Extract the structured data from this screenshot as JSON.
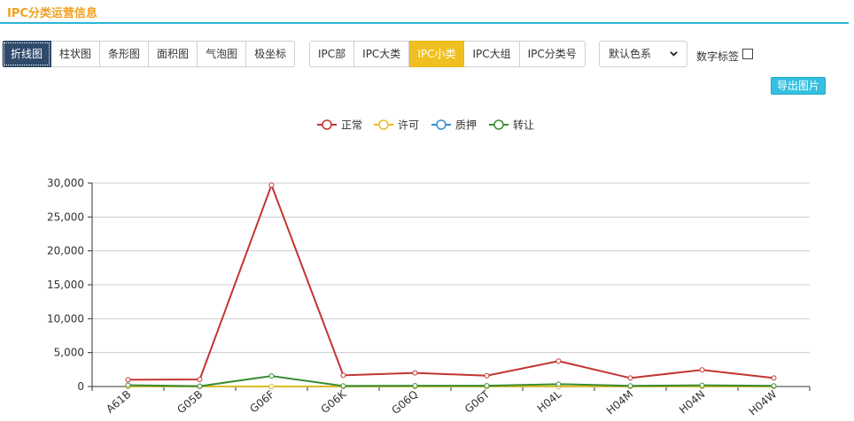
{
  "panel_title": "IPC分类运营信息",
  "chart_types": [
    "折线图",
    "柱状图",
    "条形图",
    "面积图",
    "气泡图",
    "极坐标"
  ],
  "ipc_levels": [
    "IPC部",
    "IPC大类",
    "IPC小类",
    "IPC大组",
    "IPC分类号"
  ],
  "color_scheme": "默认色系",
  "number_label": "数字标签",
  "export_label": "导出图片",
  "chart_data": {
    "type": "line",
    "categories": [
      "A61B",
      "G05B",
      "G06F",
      "G06K",
      "G06Q",
      "G06T",
      "H04L",
      "H04M",
      "H04N",
      "H04W"
    ],
    "series": [
      {
        "name": "正常",
        "color": "#c23531",
        "values": [
          1000,
          1050,
          29700,
          1650,
          2000,
          1600,
          3750,
          1250,
          2450,
          1250
        ]
      },
      {
        "name": "许可",
        "color": "#e8c023",
        "values": [
          10,
          10,
          20,
          10,
          10,
          10,
          10,
          10,
          10,
          10
        ]
      },
      {
        "name": "质押",
        "color": "#2f8fd0",
        "values": [
          0,
          0,
          0,
          0,
          0,
          0,
          0,
          0,
          0,
          0
        ]
      },
      {
        "name": "转让",
        "color": "#3a8c2f",
        "values": [
          200,
          50,
          1550,
          80,
          120,
          120,
          350,
          90,
          180,
          100
        ]
      }
    ],
    "ylim": [
      0,
      30000
    ],
    "yticks": [
      0,
      5000,
      10000,
      15000,
      20000,
      25000,
      30000
    ],
    "ytick_labels": [
      "0",
      "5,000",
      "10,000",
      "15,000",
      "20,000",
      "25,000",
      "30,000"
    ],
    "grid": true,
    "legend": "top-center"
  }
}
